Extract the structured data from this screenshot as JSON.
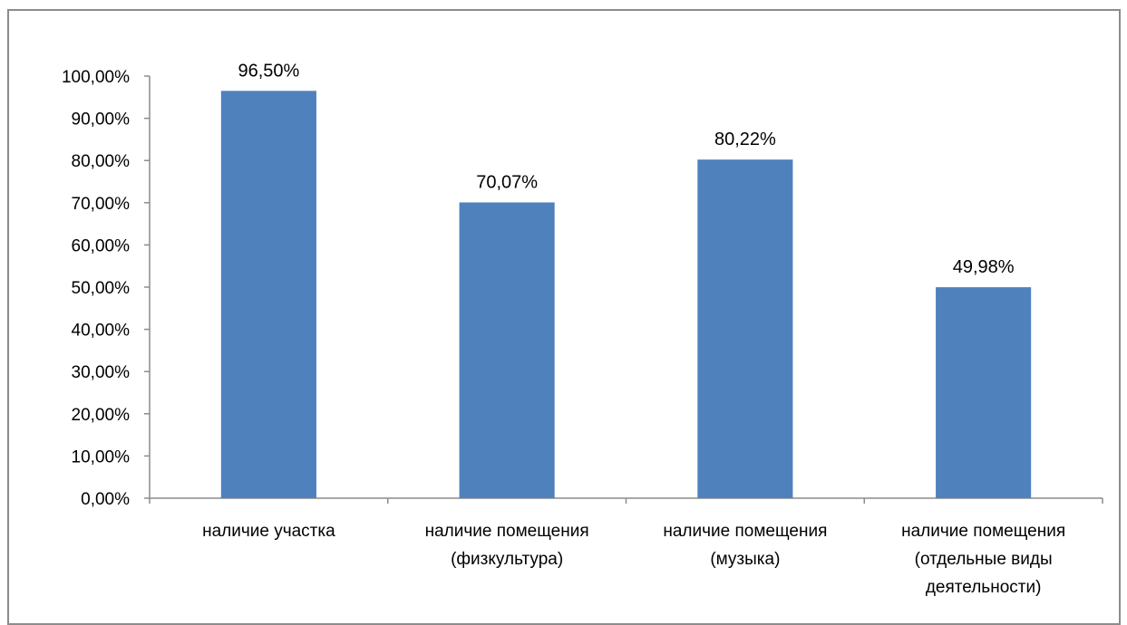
{
  "chart_data": {
    "type": "bar",
    "categories": [
      [
        "наличие участка"
      ],
      [
        "наличие помещения",
        "(физкультура)"
      ],
      [
        "наличие помещения",
        "(музыка)"
      ],
      [
        "наличие помещения",
        "(отдельные виды",
        "деятельности)"
      ]
    ],
    "values": [
      96.5,
      70.07,
      80.22,
      49.98
    ],
    "value_labels": [
      "96,50%",
      "70,07%",
      "80,22%",
      "49,98%"
    ],
    "title": "",
    "xlabel": "",
    "ylabel": "",
    "ylim": [
      0,
      100
    ],
    "yticks": [
      "0,00%",
      "10,00%",
      "20,00%",
      "30,00%",
      "40,00%",
      "50,00%",
      "60,00%",
      "70,00%",
      "80,00%",
      "90,00%",
      "100,00%"
    ],
    "grid": false,
    "legend": "none",
    "bar_color": "#4f81bd",
    "axis_color": "#8c8c8c"
  }
}
